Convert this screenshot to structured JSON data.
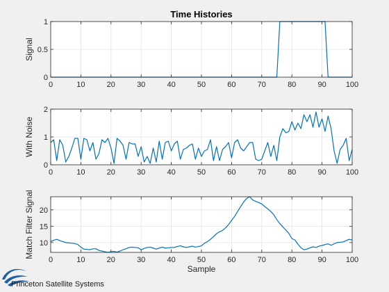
{
  "figure": {
    "logo_text": "Princeton Satellite Systems",
    "logo_color": "#1f5fa8"
  },
  "chart_data": [
    {
      "type": "line",
      "title": "Time Histories",
      "xlabel": "",
      "ylabel": "Signal",
      "xlim": [
        0,
        100
      ],
      "ylim": [
        0,
        1
      ],
      "xticks": [
        0,
        10,
        20,
        30,
        40,
        50,
        60,
        70,
        80,
        90,
        100
      ],
      "yticks": [
        0,
        0.5,
        1
      ],
      "grid": true,
      "line_color": "#0072bd",
      "series": [
        {
          "x": [
            0,
            75,
            76,
            91,
            92,
            100
          ],
          "y": [
            0,
            0,
            1,
            1,
            0,
            0
          ]
        }
      ]
    },
    {
      "type": "line",
      "title": "",
      "xlabel": "",
      "ylabel": "With Noise",
      "xlim": [
        0,
        100
      ],
      "ylim": [
        0,
        2
      ],
      "xticks": [
        0,
        10,
        20,
        30,
        40,
        50,
        60,
        70,
        80,
        90,
        100
      ],
      "yticks": [
        0,
        1,
        2
      ],
      "grid": true,
      "line_color": "#0072bd",
      "series": [
        {
          "x": [
            0,
            1,
            2,
            3,
            4,
            5,
            6,
            7,
            8,
            9,
            10,
            11,
            12,
            13,
            14,
            15,
            16,
            17,
            18,
            19,
            20,
            21,
            22,
            23,
            24,
            25,
            26,
            27,
            28,
            29,
            30,
            31,
            32,
            33,
            34,
            35,
            36,
            37,
            38,
            39,
            40,
            41,
            42,
            43,
            44,
            45,
            46,
            47,
            48,
            49,
            50,
            51,
            52,
            53,
            54,
            55,
            56,
            57,
            58,
            59,
            60,
            61,
            62,
            63,
            64,
            65,
            66,
            67,
            68,
            69,
            70,
            71,
            72,
            73,
            74,
            75,
            76,
            77,
            78,
            79,
            80,
            81,
            82,
            83,
            84,
            85,
            86,
            87,
            88,
            89,
            90,
            91,
            92,
            93,
            94,
            95,
            96,
            97,
            98,
            99,
            100
          ],
          "y": [
            0.8,
            0.9,
            0.15,
            0.9,
            0.7,
            0.1,
            0.3,
            0.6,
            0.95,
            0.95,
            0.2,
            0.95,
            0.9,
            0.5,
            0.8,
            0.2,
            0.4,
            0.9,
            0.8,
            0.95,
            0.6,
            0.05,
            0.95,
            0.85,
            0.7,
            0.2,
            0.8,
            0.75,
            0.75,
            0.3,
            0.65,
            0.1,
            0.3,
            0.05,
            0.6,
            0.1,
            0.85,
            0.2,
            0.8,
            0.85,
            0.5,
            0.75,
            0.85,
            0.2,
            0.55,
            0.6,
            0.7,
            0.75,
            0.2,
            0.6,
            0.3,
            0.5,
            0.55,
            0.9,
            0.15,
            0.65,
            0.15,
            0.55,
            0.65,
            0.8,
            0.25,
            0.8,
            0.9,
            0.6,
            0.5,
            0.65,
            0.8,
            0.8,
            0.2,
            0.15,
            0.2,
            0.5,
            0.8,
            0.3,
            0.7,
            0.15,
            1.0,
            1.3,
            1.15,
            1.2,
            1.55,
            1.25,
            1.5,
            1.3,
            1.8,
            1.55,
            1.8,
            1.35,
            1.9,
            1.35,
            1.65,
            1.2,
            1.75,
            1.3,
            0.5,
            0.05,
            0.55,
            0.7,
            0.95,
            0.15,
            0.55
          ]
        }
      ]
    },
    {
      "type": "line",
      "title": "",
      "xlabel": "Sample",
      "ylabel": "Match Filter Signal",
      "xlim": [
        0,
        100
      ],
      "ylim": [
        7,
        24
      ],
      "xticks": [
        0,
        10,
        20,
        30,
        40,
        50,
        60,
        70,
        80,
        90,
        100
      ],
      "yticks": [
        10,
        15,
        20
      ],
      "grid": true,
      "line_color": "#0072bd",
      "series": [
        {
          "x": [
            0,
            1,
            2,
            3,
            4,
            5,
            6,
            7,
            8,
            9,
            10,
            11,
            12,
            13,
            14,
            15,
            16,
            17,
            18,
            19,
            20,
            21,
            22,
            23,
            24,
            25,
            26,
            27,
            28,
            29,
            30,
            31,
            32,
            33,
            34,
            35,
            36,
            37,
            38,
            39,
            40,
            41,
            42,
            43,
            44,
            45,
            46,
            47,
            48,
            49,
            50,
            51,
            52,
            53,
            54,
            55,
            56,
            57,
            58,
            59,
            60,
            61,
            62,
            63,
            64,
            65,
            66,
            67,
            68,
            69,
            70,
            71,
            72,
            73,
            74,
            75,
            76,
            77,
            78,
            79,
            80,
            81,
            82,
            83,
            84,
            85,
            86,
            87,
            88,
            89,
            90,
            91,
            92,
            93,
            94,
            95,
            96,
            97,
            98,
            99,
            100
          ],
          "y": [
            10.3,
            10.7,
            11.0,
            10.6,
            10.3,
            10.0,
            9.9,
            9.8,
            9.7,
            9.4,
            8.6,
            8.0,
            7.9,
            7.8,
            8.1,
            8.1,
            7.6,
            7.4,
            7.2,
            7.0,
            7.2,
            7.3,
            7.1,
            7.4,
            7.8,
            8.1,
            8.5,
            8.6,
            8.5,
            8.4,
            7.8,
            8.2,
            8.5,
            8.6,
            8.3,
            8.0,
            8.3,
            8.6,
            8.3,
            8.4,
            8.5,
            8.5,
            8.8,
            9.0,
            8.7,
            8.5,
            8.7,
            8.9,
            8.6,
            8.8,
            9.0,
            9.8,
            10.3,
            11.0,
            11.8,
            12.7,
            13.3,
            13.7,
            14.5,
            15.5,
            16.8,
            18.0,
            19.5,
            21.0,
            22.4,
            23.5,
            24.0,
            23.0,
            22.6,
            22.2,
            21.8,
            21.0,
            20.3,
            19.5,
            18.5,
            17.0,
            15.8,
            14.8,
            13.8,
            12.8,
            11.2,
            10.8,
            9.5,
            8.4,
            7.8,
            8.0,
            8.4,
            8.7,
            8.5,
            8.9,
            9.1,
            9.4,
            9.6,
            9.2,
            9.6,
            10.0,
            10.1,
            10.2,
            10.6,
            11.0,
            10.8
          ]
        }
      ]
    }
  ]
}
